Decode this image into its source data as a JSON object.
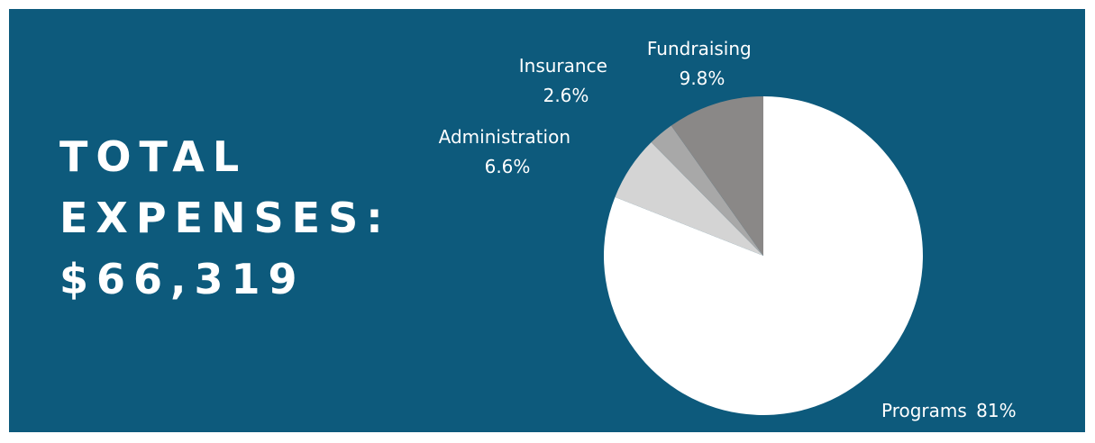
{
  "headline": {
    "line1": "TOTAL",
    "line2": "EXPENSES:",
    "line3": "$66,319"
  },
  "colors": {
    "background": "#0d5a7c",
    "text": "#ffffff"
  },
  "chart_data": {
    "type": "pie",
    "title": "",
    "slices": [
      {
        "label": "Programs",
        "value": 81.0,
        "value_label": "81%",
        "color": "#ffffff"
      },
      {
        "label": "Administration",
        "value": 6.6,
        "value_label": "6.6%",
        "color": "#d4d4d4"
      },
      {
        "label": "Insurance",
        "value": 2.6,
        "value_label": "2.6%",
        "color": "#a8a8a8"
      },
      {
        "label": "Fundraising",
        "value": 9.8,
        "value_label": "9.8%",
        "color": "#8a8887"
      }
    ],
    "start_angle": "12 o'clock",
    "direction": "clockwise",
    "legend": "none"
  }
}
